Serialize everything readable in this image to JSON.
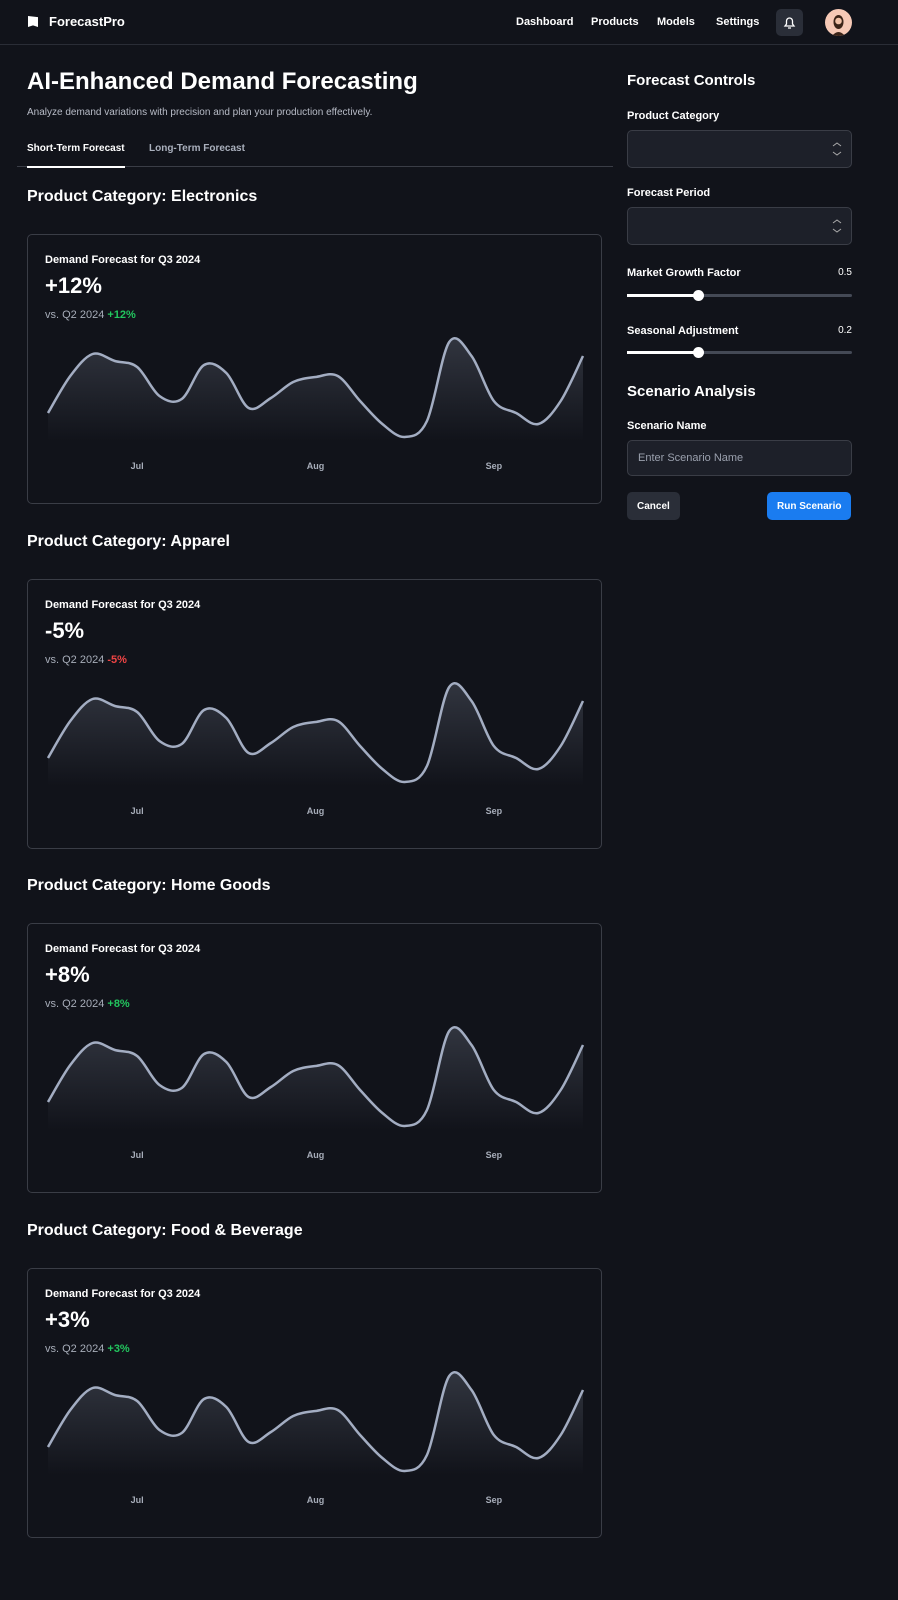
{
  "nav": {
    "brand": "ForecastPro",
    "links": [
      "Dashboard",
      "Products",
      "Models",
      "Settings"
    ]
  },
  "header": {
    "title": "AI-Enhanced Demand Forecasting",
    "subtitle": "Analyze demand variations with precision and plan your production effectively."
  },
  "tabs": [
    "Short-Term Forecast",
    "Long-Term Forecast"
  ],
  "sections": [
    {
      "heading": "Product Category: Electronics",
      "card_title": "Demand Forecast for Q3 2024",
      "change": "+12%",
      "comparison": "vs. Q2 2024",
      "comparison_change": "+12%",
      "chart_data": {
        "type": "line",
        "color": "#a3adc2",
        "ylim": [
          0,
          100
        ],
        "categories": [
          null,
          null,
          null,
          null,
          "Jul",
          null,
          null,
          null,
          null,
          null,
          null,
          null,
          "Aug",
          null,
          null,
          null,
          null,
          null,
          null,
          null,
          "Sep",
          null,
          null,
          null,
          null
        ],
        "values": [
          28,
          65,
          87,
          80,
          74,
          45,
          42,
          76,
          68,
          33,
          43,
          59,
          64,
          65,
          40,
          17,
          4,
          20,
          99,
          85,
          40,
          28,
          17,
          40,
          85
        ]
      }
    },
    {
      "heading": "Product Category: Apparel",
      "card_title": "Demand Forecast for Q3 2024",
      "change": "-5%",
      "comparison": "vs. Q2 2024",
      "comparison_change": "-5%",
      "chart_data": {
        "type": "line",
        "color": "#a3adc2",
        "ylim": [
          0,
          100
        ],
        "categories": [
          null,
          null,
          null,
          null,
          "Jul",
          null,
          null,
          null,
          null,
          null,
          null,
          null,
          "Aug",
          null,
          null,
          null,
          null,
          null,
          null,
          null,
          "Sep",
          null,
          null,
          null,
          null
        ],
        "values": [
          28,
          65,
          87,
          80,
          74,
          45,
          42,
          76,
          68,
          33,
          43,
          59,
          64,
          65,
          40,
          17,
          4,
          20,
          99,
          85,
          40,
          28,
          17,
          40,
          85
        ]
      }
    },
    {
      "heading": "Product Category: Home Goods",
      "card_title": "Demand Forecast for Q3 2024",
      "change": "+8%",
      "comparison": "vs. Q2 2024",
      "comparison_change": "+8%",
      "chart_data": {
        "type": "line",
        "color": "#a3adc2",
        "ylim": [
          0,
          100
        ],
        "categories": [
          null,
          null,
          null,
          null,
          "Jul",
          null,
          null,
          null,
          null,
          null,
          null,
          null,
          "Aug",
          null,
          null,
          null,
          null,
          null,
          null,
          null,
          "Sep",
          null,
          null,
          null,
          null
        ],
        "values": [
          28,
          65,
          87,
          80,
          74,
          45,
          42,
          76,
          68,
          33,
          43,
          59,
          64,
          65,
          40,
          17,
          4,
          20,
          99,
          85,
          40,
          28,
          17,
          40,
          85
        ]
      }
    },
    {
      "heading": "Product Category: Food & Beverage",
      "card_title": "Demand Forecast for Q3 2024",
      "change": "+3%",
      "comparison": "vs. Q2 2024",
      "comparison_change": "+3%",
      "chart_data": {
        "type": "line",
        "color": "#a3adc2",
        "ylim": [
          0,
          100
        ],
        "categories": [
          null,
          null,
          null,
          null,
          "Jul",
          null,
          null,
          null,
          null,
          null,
          null,
          null,
          "Aug",
          null,
          null,
          null,
          null,
          null,
          null,
          null,
          "Sep",
          null,
          null,
          null,
          null
        ],
        "values": [
          28,
          65,
          87,
          80,
          74,
          45,
          42,
          76,
          68,
          33,
          43,
          59,
          64,
          65,
          40,
          17,
          4,
          20,
          99,
          85,
          40,
          28,
          17,
          40,
          85
        ]
      }
    }
  ],
  "controls": {
    "title": "Forecast Controls",
    "fields": [
      "Product Category",
      "Forecast Period"
    ],
    "sliders": [
      {
        "label": "Market Growth Factor",
        "value": 0.5
      },
      {
        "label": "Seasonal Adjustment",
        "value": 0.2
      }
    ],
    "scenario": {
      "title": "Scenario Analysis",
      "label": "Scenario Name",
      "placeholder": "Enter Scenario Name",
      "cancel": "Cancel",
      "run": "Run Scenario"
    }
  }
}
